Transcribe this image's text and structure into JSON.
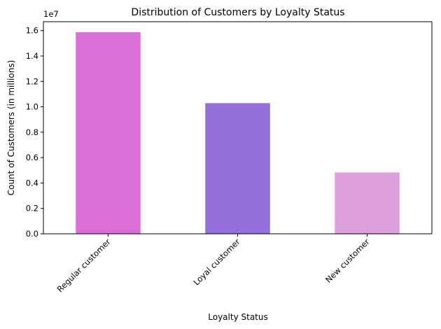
{
  "chart_data": {
    "type": "bar",
    "title": "Distribution of Customers by Loyalty Status",
    "xlabel": "Loyalty Status",
    "ylabel": "Count of Customers (in millions)",
    "categories": [
      "Regular customer",
      "Loyal customer",
      "New customer"
    ],
    "values": [
      15870000,
      10290000,
      4830000
    ],
    "colors": [
      "#da70d6",
      "#9370db",
      "#dda0dd"
    ],
    "ylim": [
      0,
      16700000
    ],
    "y_ticks": [
      0,
      2000000,
      4000000,
      6000000,
      8000000,
      10000000,
      12000000,
      14000000,
      16000000
    ],
    "y_tick_labels": [
      "0.0",
      "0.2",
      "0.4",
      "0.6",
      "0.8",
      "1.0",
      "1.2",
      "1.4",
      "1.6"
    ],
    "y_offset_text": "1e7",
    "x_tick_rotation_deg": -45,
    "grid": false,
    "legend": "none"
  }
}
